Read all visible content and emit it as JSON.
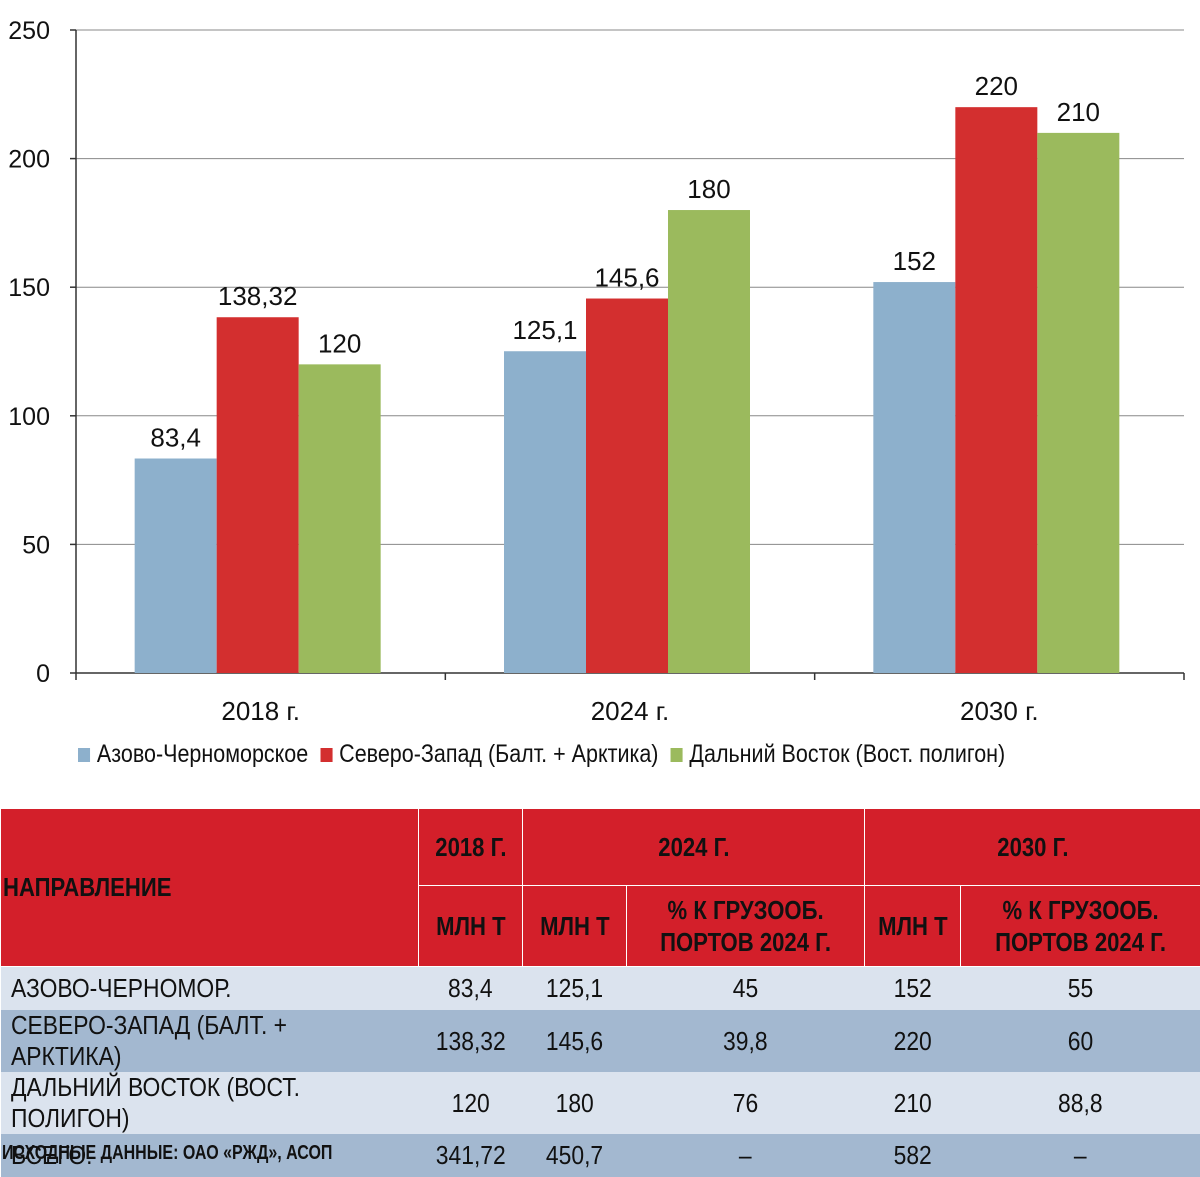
{
  "chart_data": {
    "type": "bar",
    "categories": [
      "2018 г.",
      "2024 г.",
      "2030 г."
    ],
    "series": [
      {
        "name": "Азово-Черноморское",
        "color": "#8db0cc",
        "values": [
          83.4,
          125.1,
          152
        ],
        "labels": [
          "83,4",
          "125,1",
          "152"
        ]
      },
      {
        "name": "Северо-Запад (Балт. + Арктика)",
        "color": "#d32f2f",
        "values": [
          138.32,
          145.6,
          220
        ],
        "labels": [
          "138,32",
          "145,6",
          "220"
        ]
      },
      {
        "name": "Дальний Восток (Вост. полигон)",
        "color": "#9bba5d",
        "values": [
          120,
          180,
          210
        ],
        "labels": [
          "120",
          "180",
          "210"
        ]
      }
    ],
    "ylim": [
      0,
      250
    ],
    "yticks": [
      0,
      50,
      100,
      150,
      200,
      250
    ],
    "ytick_labels": [
      "0",
      "50",
      "100",
      "150",
      "200",
      "250"
    ],
    "grid": true,
    "legend": "bottom"
  },
  "table": {
    "direction_header": "НАПРАВЛЕНИЕ",
    "year_headers": [
      "2018 Г.",
      "2024 Г.",
      "2030 Г."
    ],
    "unit_mln": "МЛН Т",
    "pct_header_line1": "% К ГРУЗООБ.",
    "pct_header_line2": "ПОРТОВ 2024 Г.",
    "rows": [
      {
        "name": "АЗОВО-ЧЕРНОМОР.",
        "v2018": "83,4",
        "v2024": "125,1",
        "p2024": "45",
        "v2030": "152",
        "p2030": "55"
      },
      {
        "name": "СЕВЕРО-ЗАПАД (БАЛТ. + АРКТИКА)",
        "v2018": "138,32",
        "v2024": "145,6",
        "p2024": "39,8",
        "v2030": "220",
        "p2030": "60"
      },
      {
        "name": "ДАЛЬНИЙ ВОСТОК (ВОСТ. ПОЛИГОН)",
        "v2018": "120",
        "v2024": "180",
        "p2024": "76",
        "v2030": "210",
        "p2030": "88,8"
      },
      {
        "name": "ВСЕГО:",
        "v2018": "341,72",
        "v2024": "450,7",
        "p2024": "–",
        "v2030": "582",
        "p2030": "–"
      }
    ]
  },
  "source": "ИСХОДНЫЕ ДАННЫЕ: ОАО «РЖД», АСОП"
}
